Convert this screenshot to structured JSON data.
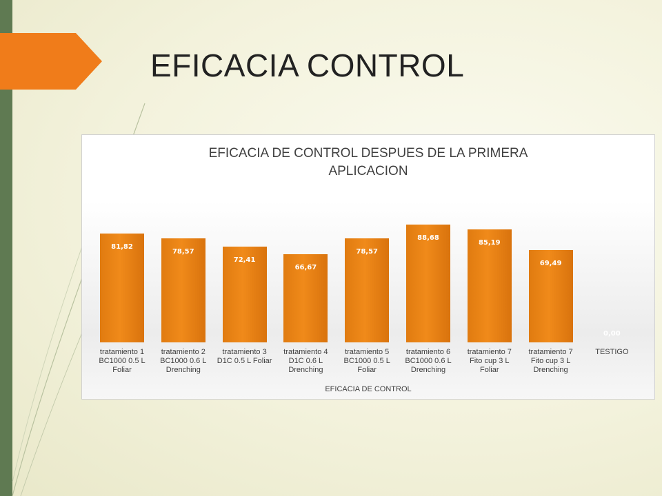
{
  "slide": {
    "title": "EFICACIA CONTROL",
    "accent_color": "#f07c1a",
    "sidebar_color": "#5f7a52"
  },
  "chart_data": {
    "type": "bar",
    "title": "EFICACIA DE CONTROL DESPUES DE LA PRIMERA APLICACION",
    "title_lines": [
      "EFICACIA DE CONTROL DESPUES DE LA PRIMERA",
      "APLICACION"
    ],
    "xlabel": "EFICACIA DE CONTROL",
    "ylabel": "",
    "ylim": [
      0,
      100
    ],
    "grid": false,
    "bar_color": "#e98211",
    "categories": [
      [
        "tratamiento 1",
        "BC1000 0.5 L",
        "Foliar"
      ],
      [
        "tratamiento 2",
        "BC1000 0.6 L",
        "Drenching"
      ],
      [
        "tratamiento 3",
        "D1C 0.5 L Foliar"
      ],
      [
        "tratamiento 4",
        "D1C 0.6 L",
        "Drenching"
      ],
      [
        "tratamiento 5",
        "BC1000 0.5 L",
        "Foliar"
      ],
      [
        "tratamiento 6",
        "BC1000 0.6 L",
        "Drenching"
      ],
      [
        "tratamiento 7",
        "Fito cup 3 L",
        "Foliar"
      ],
      [
        "tratamiento 7",
        "Fito cup 3 L",
        "Drenching"
      ],
      [
        "TESTIGO"
      ]
    ],
    "values": [
      81.82,
      78.57,
      72.41,
      66.67,
      78.57,
      88.68,
      85.19,
      69.49,
      0.0
    ],
    "value_labels": [
      "81,82",
      "78,57",
      "72,41",
      "66,67",
      "78,57",
      "88,68",
      "85,19",
      "69,49",
      "0,00"
    ]
  }
}
